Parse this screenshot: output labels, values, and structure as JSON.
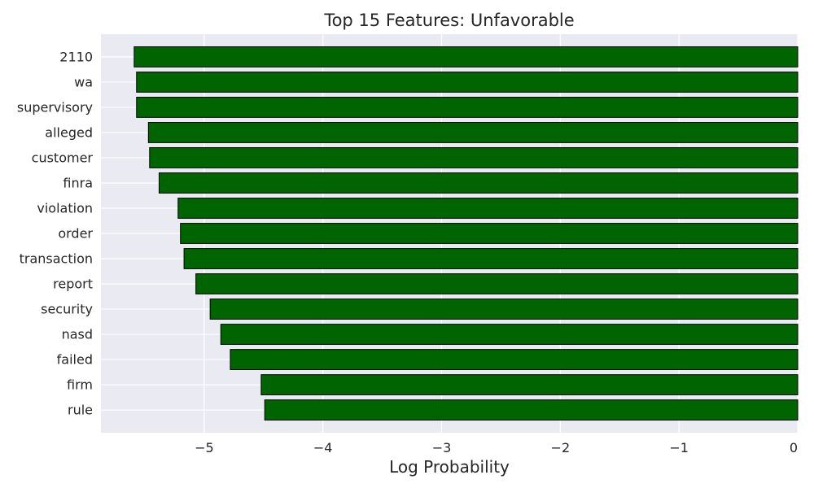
{
  "chart_data": {
    "type": "bar",
    "orientation": "horizontal",
    "title": "Top 15 Features: Unfavorable",
    "xlabel": "Log Probability",
    "ylabel": "",
    "categories": [
      "2110",
      "wa",
      "supervisory",
      "alleged",
      "customer",
      "finra",
      "violation",
      "order",
      "transaction",
      "report",
      "security",
      "nasd",
      "failed",
      "firm",
      "rule"
    ],
    "values": [
      -5.59,
      -5.57,
      -5.57,
      -5.47,
      -5.46,
      -5.38,
      -5.22,
      -5.2,
      -5.17,
      -5.07,
      -4.95,
      -4.86,
      -4.78,
      -4.52,
      -4.49
    ],
    "xlim": [
      -5.87,
      0
    ],
    "xticks": [
      -5,
      -4,
      -3,
      -2,
      -1,
      0
    ],
    "xtick_labels": [
      "−5",
      "−4",
      "−3",
      "−2",
      "−1",
      "0"
    ],
    "grid": true,
    "colors": {
      "bar": "#006400",
      "edge": "#000000",
      "plot_bg": "#EAEAF2",
      "grid": "#FFFFFF"
    }
  }
}
